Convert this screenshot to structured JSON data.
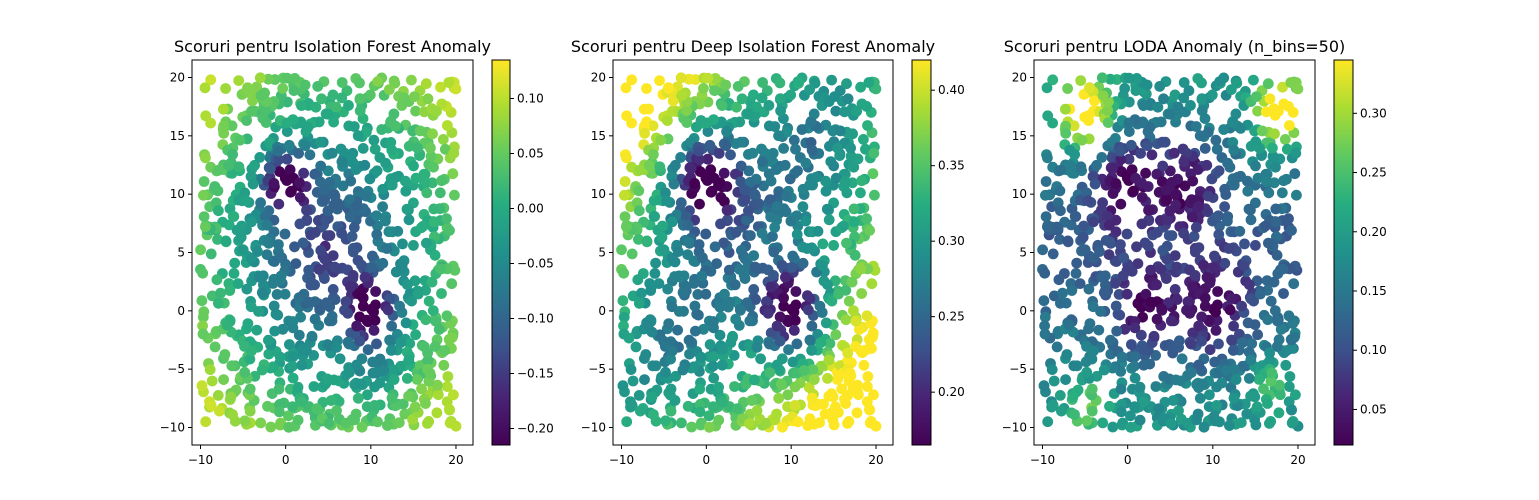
{
  "chart_data": [
    {
      "type": "scatter",
      "title": "Scoruri pentru Isolation Forest Anomaly",
      "xlabel": "",
      "ylabel": "",
      "xlim": [
        -11,
        22
      ],
      "ylim": [
        -11.5,
        21.5
      ],
      "xticks": [
        -10,
        0,
        10,
        20
      ],
      "yticks": [
        -10,
        -5,
        0,
        5,
        10,
        15,
        20
      ],
      "colormap": "viridis",
      "colorbar": {
        "range": [
          -0.215,
          0.135
        ],
        "ticks": [
          -0.2,
          -0.15,
          -0.1,
          -0.05,
          0.0,
          0.05,
          0.1
        ],
        "tick_labels": [
          "−0.20",
          "−0.15",
          "−0.10",
          "−0.05",
          "0.00",
          "0.05",
          "0.10"
        ]
      },
      "point_count": 1000,
      "point_distribution": "uniform on x in [-10, 20], y in [-10, 20]",
      "score_trend": "highest at corners and edges, lowest near clusters at (0, 11) and (10, 0)",
      "grid": false
    },
    {
      "type": "scatter",
      "title": "Scoruri pentru Deep Isolation Forest Anomaly",
      "xlabel": "",
      "ylabel": "",
      "xlim": [
        -11,
        22
      ],
      "ylim": [
        -11.5,
        21.5
      ],
      "xticks": [
        -10,
        0,
        10,
        20
      ],
      "yticks": [
        -10,
        -5,
        0,
        5,
        10,
        15,
        20
      ],
      "colormap": "viridis",
      "colorbar": {
        "range": [
          0.165,
          0.42
        ],
        "ticks": [
          0.2,
          0.25,
          0.3,
          0.35,
          0.4
        ],
        "tick_labels": [
          "0.20",
          "0.25",
          "0.30",
          "0.35",
          "0.40"
        ]
      },
      "point_count": 1000,
      "point_distribution": "uniform on x in [-10, 20], y in [-10, 20]",
      "score_trend": "highest at corners, lowest near clusters at (0, 11) and (10, 0), diagonal banding",
      "grid": false
    },
    {
      "type": "scatter",
      "title": "Scoruri pentru LODA Anomaly (n_bins=50)",
      "xlabel": "",
      "ylabel": "",
      "xlim": [
        -11,
        22
      ],
      "ylim": [
        -11.5,
        21.5
      ],
      "xticks": [
        -10,
        0,
        10,
        20
      ],
      "yticks": [
        -10,
        -5,
        0,
        5,
        10,
        15,
        20
      ],
      "colormap": "viridis",
      "colorbar": {
        "range": [
          0.02,
          0.345
        ],
        "ticks": [
          0.05,
          0.1,
          0.15,
          0.2,
          0.25,
          0.3
        ],
        "tick_labels": [
          "0.05",
          "0.10",
          "0.15",
          "0.20",
          "0.25",
          "0.30"
        ]
      },
      "point_count": 1000,
      "point_distribution": "uniform on x in [-10, 20], y in [-10, 20]",
      "score_trend": "mostly low in center band, high near top-left and top-right corners",
      "grid": false
    }
  ]
}
